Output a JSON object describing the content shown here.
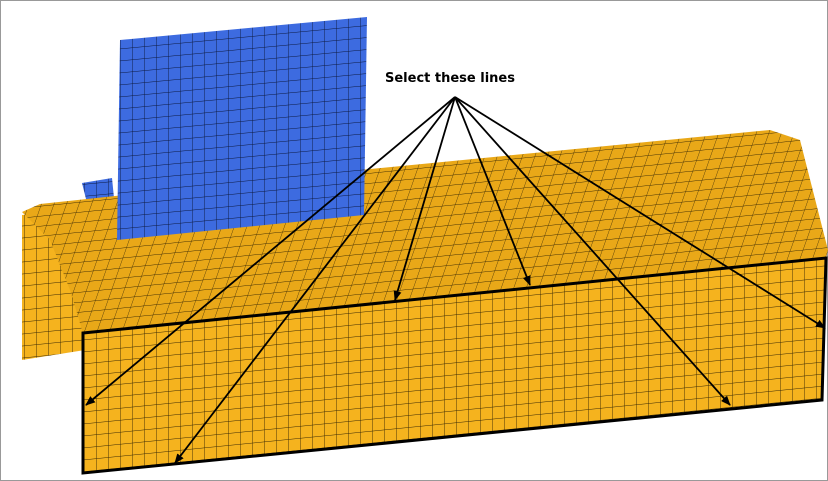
{
  "annotation": {
    "label": "Select these lines"
  }
}
